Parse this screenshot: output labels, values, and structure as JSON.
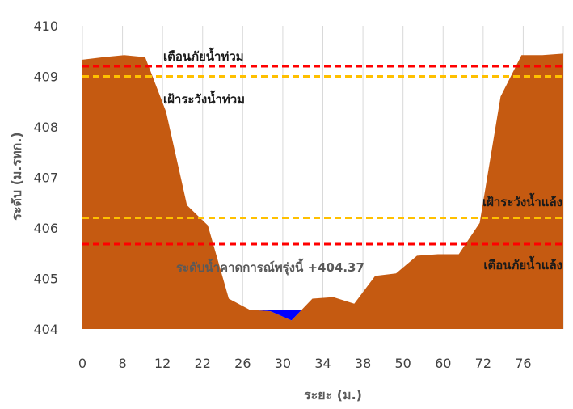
{
  "chart_data": {
    "type": "area",
    "xlabel": "ระยะ (ม.)",
    "ylabel": "ระดับ (ม.รทก.)",
    "ylim": [
      404,
      410
    ],
    "yticks": [
      "404",
      "405",
      "406",
      "407",
      "408",
      "409",
      "410"
    ],
    "xtick_labels": [
      "0",
      "8",
      "12",
      "22",
      "26",
      "30",
      "34",
      "38",
      "50",
      "60",
      "72",
      "76"
    ],
    "grid": "vertical",
    "series": [
      {
        "kind": "ground",
        "color": "#C55A11",
        "points": [
          [
            0,
            409.33
          ],
          [
            1,
            409.38
          ],
          [
            2,
            409.42
          ],
          [
            3,
            409.38
          ],
          [
            4,
            408.3
          ],
          [
            5,
            406.45
          ],
          [
            6,
            406.05
          ],
          [
            7,
            404.6
          ],
          [
            8,
            404.38
          ],
          [
            9,
            404.35
          ],
          [
            10,
            404.17
          ],
          [
            11,
            404.6
          ],
          [
            12,
            404.63
          ],
          [
            13,
            404.5
          ],
          [
            14,
            405.05
          ],
          [
            15,
            405.1
          ],
          [
            16,
            405.45
          ],
          [
            17,
            405.48
          ],
          [
            18,
            405.48
          ],
          [
            19,
            406.1
          ],
          [
            20,
            408.6
          ],
          [
            21,
            409.42
          ],
          [
            22,
            409.42
          ],
          [
            23,
            409.45
          ]
        ]
      },
      {
        "kind": "water",
        "color": "#0000FF",
        "level": 404.37
      }
    ],
    "reference_lines": [
      {
        "label": "เตือนภัยน้ำท่วม",
        "y": 409.2,
        "color": "#FF0000"
      },
      {
        "label": "เฝ้าระวังน้ำท่วม",
        "y": 409.0,
        "color": "#FFC000"
      },
      {
        "label": "เฝ้าระวังน้ำแล้ง",
        "y": 406.2,
        "color": "#FFC000"
      },
      {
        "label": "เตือนภัยน้ำแล้ง",
        "y": 405.68,
        "color": "#FF0000"
      }
    ],
    "annotation": "ระดับน้ำคาดการณ์พรุ่งนี้ +404.37"
  }
}
